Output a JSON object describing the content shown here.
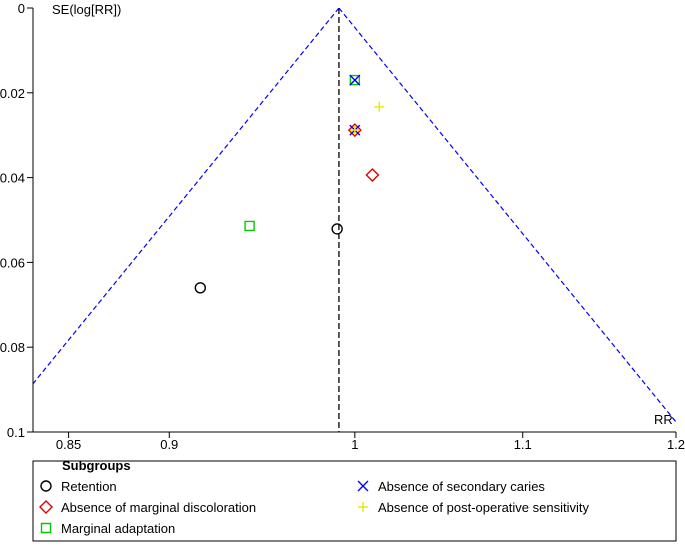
{
  "chart_data": {
    "type": "scatter",
    "y_label": "SE(log[RR])",
    "x_label": "RR",
    "xscale": "log",
    "xlim": [
      0.833,
      1.2
    ],
    "xticks": [
      0.85,
      0.9,
      1,
      1.1,
      1.2
    ],
    "ylim": [
      0,
      0.1
    ],
    "yticks": [
      0,
      0.02,
      0.04,
      0.06,
      0.08,
      0.1
    ],
    "y_inverted": true,
    "pooled_estimate": 0.991,
    "funnel_color": "#0000ff",
    "legend_title": "Subgroups",
    "series": [
      {
        "name": "Retention",
        "color": "#000000",
        "marker": "circle",
        "x": [
          0.916,
          0.99
        ],
        "values": [
          0.066,
          0.0521
        ]
      },
      {
        "name": "Absence of marginal discoloration",
        "color": "#e00000",
        "marker": "diamond",
        "x": [
          1.0,
          1.01
        ],
        "values": [
          0.0288,
          0.0394
        ]
      },
      {
        "name": "Marginal adaptation",
        "color": "#00cc00",
        "marker": "square",
        "x": [
          0.942,
          1.0
        ],
        "values": [
          0.0514,
          0.017
        ]
      },
      {
        "name": "Absence of secondary caries",
        "color": "#0000ff",
        "marker": "x",
        "x": [
          1.0,
          1.0
        ],
        "values": [
          0.017,
          0.0288
        ]
      },
      {
        "name": "Absence of post-operative sensitivity",
        "color": "#e8e800",
        "marker": "plus",
        "x": [
          1.014,
          1.0
        ],
        "values": [
          0.0233,
          0.0288
        ]
      }
    ]
  }
}
